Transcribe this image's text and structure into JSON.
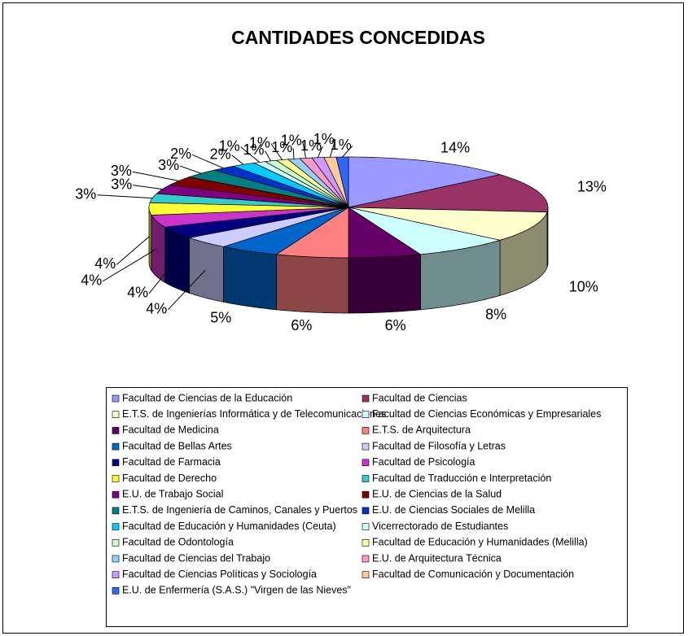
{
  "chart_data": {
    "type": "pie3d",
    "title": "CANTIDADES CONCEDIDAS",
    "categories": [
      "Facultad de Ciencias de la Educación",
      "Facultad de Ciencias",
      "E.T.S. de Ingenierías Informática y de Telecomunicaciones",
      "Facultad de Ciencias Económicas y Empresariales",
      "Facultad de Medicina",
      "E.T.S. de Arquitectura",
      "Facultad de Bellas Artes",
      "Facultad de Filosofía y Letras",
      "Facultad de Farmacia",
      "Facultad de Psicología",
      "Facultad de Derecho",
      "Facultad de Traducción e Interpretación",
      "E.U. de Trabajo Social",
      "E.U. de Ciencias de la Salud",
      "E.T.S. de Ingeniería de Caminos, Canales y Puertos",
      "E.U. de Ciencias Sociales de Melilla",
      "Facultad de Educación y Humanidades (Ceuta)",
      "Vicerrectorado de Estudiantes",
      "Facultad de Odontología",
      "Facultad de Educación y Humanidades (Melilla)",
      "Facultad de Ciencias del Trabajo",
      "E.U. de Arquitectura Técnica",
      "Facultad de Ciencias Políticas y Sociología",
      "Facultad de Comunicación y Documentación",
      "E.U. de Enfermería (S.A.S.) \"Virgen de las Nieves\""
    ],
    "values": [
      14,
      13,
      10,
      8,
      6,
      6,
      5,
      4,
      4,
      4,
      4,
      3,
      3,
      3,
      3,
      2,
      2,
      1,
      1,
      1,
      1,
      1,
      1,
      1,
      1
    ],
    "value_labels": [
      "14%",
      "13%",
      "10%",
      "8%",
      "6%",
      "6%",
      "5%",
      "4%",
      "4%",
      "4%",
      "4%",
      "3%",
      "3%",
      "3%",
      "3%",
      "2%",
      "2%",
      "1%",
      "1%",
      "1%",
      "1%",
      "1%",
      "1%",
      "1%",
      "1%"
    ],
    "colors": [
      "#9999FF",
      "#993366",
      "#FFFFCC",
      "#CCFFFF",
      "#660066",
      "#FF8080",
      "#0066CC",
      "#CCCCFF",
      "#000080",
      "#CC33CC",
      "#FFFF33",
      "#33CCCC",
      "#800080",
      "#800000",
      "#008080",
      "#0033CC",
      "#00CCFF",
      "#CCFFFF",
      "#CCFFCC",
      "#FFFF99",
      "#99CCFF",
      "#FF99CC",
      "#CC99FF",
      "#FFCC99",
      "#3366FF"
    ],
    "legend": "bottom"
  }
}
